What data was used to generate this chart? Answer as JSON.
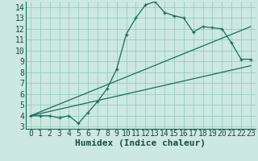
{
  "xlabel": "Humidex (Indice chaleur)",
  "bg_color": "#cce8e2",
  "grid_color": "#99ccbb",
  "line_color": "#1a6b5a",
  "xlim": [
    -0.5,
    23.5
  ],
  "ylim": [
    2.8,
    14.5
  ],
  "xticks": [
    0,
    1,
    2,
    3,
    4,
    5,
    6,
    7,
    8,
    9,
    10,
    11,
    12,
    13,
    14,
    15,
    16,
    17,
    18,
    19,
    20,
    21,
    22,
    23
  ],
  "yticks": [
    3,
    4,
    5,
    6,
    7,
    8,
    9,
    10,
    11,
    12,
    13,
    14
  ],
  "curve1_x": [
    0,
    1,
    2,
    3,
    4,
    5,
    6,
    7,
    8,
    9,
    10,
    11,
    12,
    13,
    14,
    15,
    16,
    17,
    18,
    19,
    20,
    21,
    22,
    23
  ],
  "curve1_y": [
    4,
    4,
    4,
    3.8,
    4,
    3.3,
    4.3,
    5.3,
    6.5,
    8.3,
    11.5,
    13,
    14.2,
    14.5,
    13.5,
    13.2,
    13,
    11.7,
    12.2,
    12.1,
    12,
    10.7,
    9.2,
    9.2
  ],
  "line2_x": [
    0,
    23
  ],
  "line2_y": [
    4.0,
    12.2
  ],
  "line3_x": [
    0,
    23
  ],
  "line3_y": [
    4.0,
    8.6
  ],
  "tick_fontsize": 7,
  "xlabel_fontsize": 8
}
